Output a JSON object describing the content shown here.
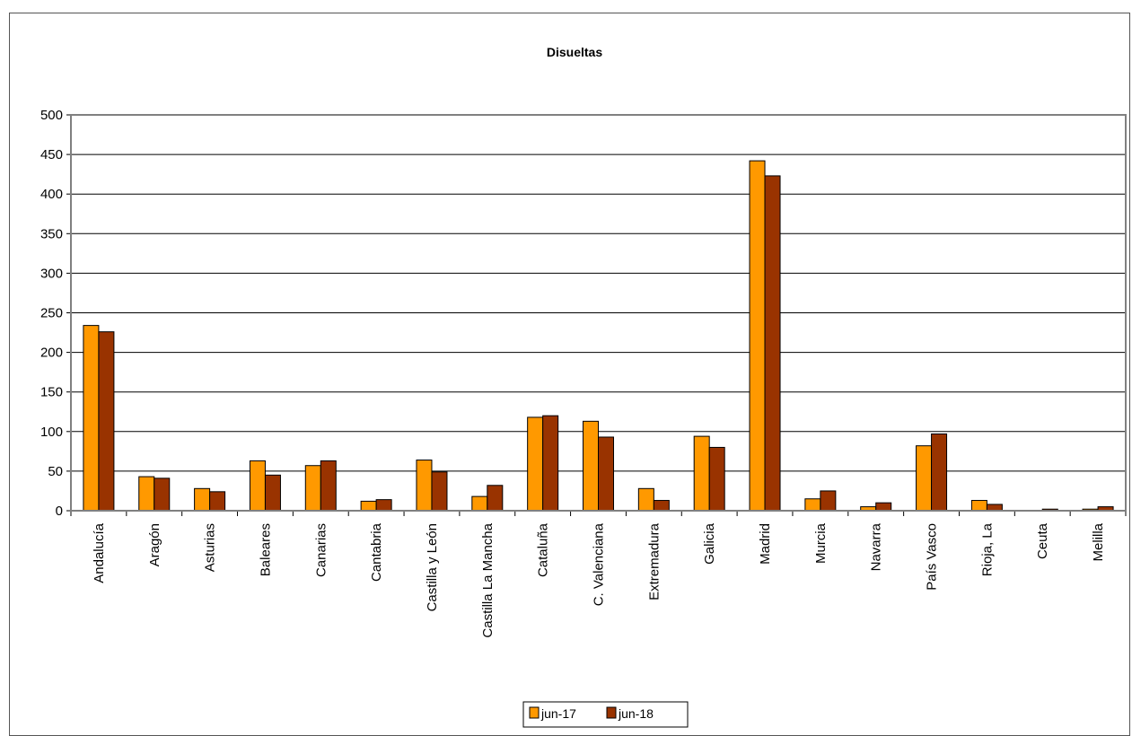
{
  "chart_data": {
    "type": "bar",
    "title": "Disueltas",
    "categories": [
      "Andalucía",
      "Aragón",
      "Asturias",
      "Baleares",
      "Canarias",
      "Cantabria",
      "Castilla y León",
      "Castilla  La Mancha",
      "Cataluña",
      "C. Valenciana",
      "Extremadura",
      "Galicia",
      "Madrid",
      "Murcia",
      "Navarra",
      "País Vasco",
      "Rioja, La",
      "Ceuta",
      "Melilla"
    ],
    "series": [
      {
        "name": "jun-17",
        "color": "#FF9900",
        "values": [
          234,
          43,
          28,
          63,
          57,
          12,
          64,
          18,
          118,
          113,
          28,
          94,
          442,
          15,
          5,
          82,
          13,
          0,
          2
        ]
      },
      {
        "name": "jun-18",
        "color": "#993300",
        "values": [
          226,
          41,
          24,
          45,
          63,
          14,
          49,
          32,
          120,
          93,
          13,
          80,
          423,
          25,
          10,
          97,
          8,
          2,
          5
        ]
      }
    ],
    "ylim": [
      0,
      500
    ],
    "yticks": [
      0,
      50,
      100,
      150,
      200,
      250,
      300,
      350,
      400,
      450,
      500
    ],
    "grid": true,
    "legend_position": "bottom"
  }
}
